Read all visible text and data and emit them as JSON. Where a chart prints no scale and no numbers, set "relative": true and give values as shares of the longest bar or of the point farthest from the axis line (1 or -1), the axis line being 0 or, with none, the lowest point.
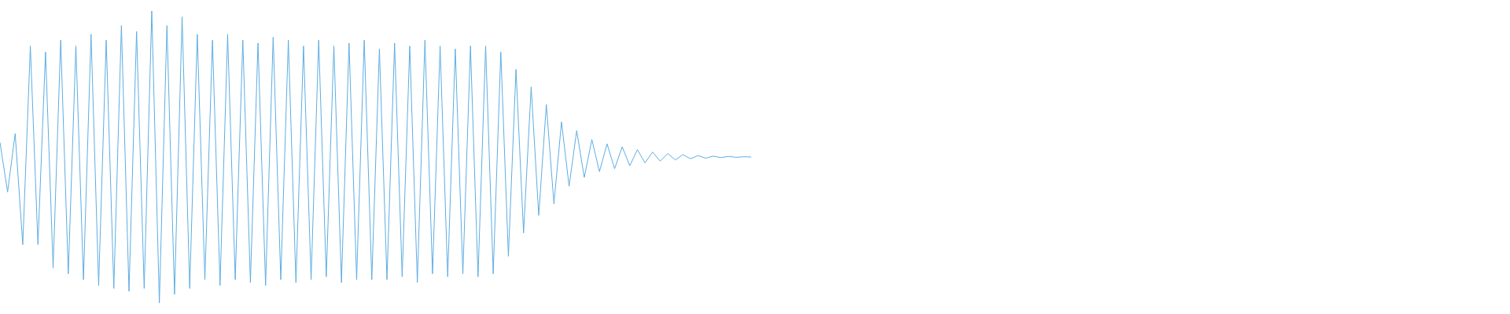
{
  "chart_data": {
    "type": "line",
    "relative": true,
    "legend": false,
    "categories": [
      null,
      null,
      null,
      null,
      null,
      null,
      null,
      null,
      null,
      null,
      null,
      null,
      null,
      null,
      null,
      null,
      null,
      null,
      null,
      null,
      null,
      null,
      null,
      null,
      null,
      null,
      null,
      null,
      null,
      null,
      null,
      null,
      null,
      null,
      null,
      null,
      null,
      null,
      null,
      null,
      null,
      null,
      null,
      null,
      null,
      null,
      null,
      null,
      null,
      null,
      null,
      null,
      null,
      null,
      null,
      null,
      null,
      null,
      null,
      null,
      null,
      null,
      null,
      null,
      null,
      null,
      null,
      null,
      null,
      null,
      null,
      null,
      null,
      null,
      null,
      null,
      null,
      null,
      null,
      null,
      null,
      null,
      null,
      null,
      null,
      null,
      null,
      null,
      null,
      null,
      null,
      null,
      null,
      null,
      null,
      null,
      null,
      null,
      null,
      null,
      null,
      null,
      null,
      null,
      null,
      null,
      null,
      null,
      null,
      null,
      null,
      null,
      null,
      null,
      null,
      null,
      null,
      null,
      null,
      null,
      null,
      null,
      null,
      null,
      null,
      null,
      null,
      null,
      null,
      null,
      null,
      null,
      null,
      null,
      null,
      null,
      null,
      null,
      null,
      null,
      null,
      null,
      null,
      null,
      null,
      null,
      null,
      null,
      null,
      null,
      null,
      null,
      null,
      null,
      null,
      null,
      null,
      null,
      null,
      null,
      null,
      null,
      null,
      null,
      null,
      null,
      null,
      null,
      null,
      null,
      null,
      null,
      null,
      null,
      null,
      null,
      null,
      null,
      null,
      null,
      null,
      null,
      null,
      null,
      null,
      null,
      null,
      null,
      null,
      null,
      null,
      null,
      null,
      null,
      null,
      null,
      null,
      null,
      null,
      null
    ],
    "series": [
      {
        "color": "#5dade2",
        "values": [
          0.55,
          0.38,
          0.58,
          0.2,
          0.88,
          0.2,
          0.86,
          0.12,
          0.9,
          0.1,
          0.88,
          0.08,
          0.92,
          0.06,
          0.9,
          0.05,
          0.95,
          0.04,
          0.93,
          0.05,
          1.0,
          0.0,
          0.95,
          0.03,
          0.98,
          0.05,
          0.92,
          0.08,
          0.9,
          0.06,
          0.92,
          0.08,
          0.9,
          0.07,
          0.89,
          0.06,
          0.91,
          0.08,
          0.9,
          0.07,
          0.88,
          0.08,
          0.9,
          0.09,
          0.88,
          0.07,
          0.89,
          0.08,
          0.9,
          0.08,
          0.87,
          0.08,
          0.89,
          0.09,
          0.88,
          0.07,
          0.9,
          0.1,
          0.88,
          0.09,
          0.87,
          0.1,
          0.88,
          0.09,
          0.88,
          0.1,
          0.86,
          0.16,
          0.8,
          0.24,
          0.74,
          0.3,
          0.68,
          0.34,
          0.62,
          0.4,
          0.59,
          0.43,
          0.56,
          0.45,
          0.545,
          0.46,
          0.535,
          0.47,
          0.525,
          0.48,
          0.517,
          0.486,
          0.512,
          0.49,
          0.508,
          0.494,
          0.505,
          0.496,
          0.503,
          0.498,
          0.502,
          0.499,
          0.501,
          0.5,
          null,
          null,
          null,
          null,
          null,
          null,
          null,
          null,
          null,
          null,
          null,
          null,
          null,
          null,
          null,
          null,
          null,
          null,
          null,
          null,
          null,
          null,
          null,
          null,
          null,
          null,
          null,
          null,
          null,
          null,
          null,
          null,
          null,
          null,
          null,
          null,
          null,
          null,
          null,
          null,
          null,
          null,
          null,
          null,
          null,
          null,
          null,
          null,
          null,
          null,
          null,
          null,
          null,
          null,
          null,
          null,
          null,
          null,
          null,
          null,
          null,
          null,
          null,
          null,
          null,
          null,
          null,
          null,
          null,
          null,
          null,
          null,
          null,
          null,
          null,
          null,
          null,
          null,
          null,
          null,
          null,
          null,
          null,
          null,
          null,
          null,
          null,
          null,
          null,
          null,
          null,
          null,
          null,
          null,
          null,
          null,
          null,
          null,
          null,
          null
        ]
      }
    ]
  }
}
